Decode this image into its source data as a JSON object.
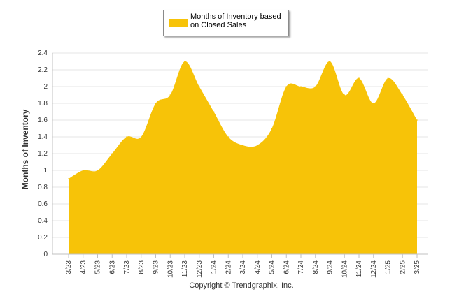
{
  "legend": {
    "label": "Months of Inventory based on Closed Sales"
  },
  "footer": {
    "copyright": "Copyright © Trendgraphix, Inc."
  },
  "chart_data": {
    "type": "area",
    "title": "",
    "xlabel": "",
    "ylabel": "Months of Inventory",
    "ylim": [
      0,
      2.4
    ],
    "yticks": [
      0,
      0.2,
      0.4,
      0.6,
      0.8,
      1,
      1.2,
      1.4,
      1.6,
      1.8,
      2,
      2.2,
      2.4
    ],
    "ytick_labels": [
      "0",
      "0.2",
      "0.4",
      "0.6",
      "0.8",
      "1",
      "1.2",
      "1.4",
      "1.6",
      "1.8",
      "2",
      "2.2",
      "2.4"
    ],
    "grid": true,
    "legend_position": "top-center",
    "color": "#f7c308",
    "categories": [
      "3/23",
      "4/23",
      "5/23",
      "6/23",
      "7/23",
      "8/23",
      "9/23",
      "10/23",
      "11/23",
      "12/23",
      "1/24",
      "2/24",
      "3/24",
      "4/24",
      "5/24",
      "6/24",
      "7/24",
      "8/24",
      "9/24",
      "10/24",
      "11/24",
      "12/24",
      "1/25",
      "2/25",
      "3/25"
    ],
    "series": [
      {
        "name": "Months of Inventory based on Closed Sales",
        "values": [
          0.9,
          1.0,
          1.0,
          1.2,
          1.4,
          1.4,
          1.8,
          1.9,
          2.3,
          2.0,
          1.7,
          1.4,
          1.3,
          1.3,
          1.5,
          2.0,
          2.0,
          2.0,
          2.3,
          1.9,
          2.1,
          1.8,
          2.1,
          1.9,
          1.6
        ]
      }
    ]
  }
}
